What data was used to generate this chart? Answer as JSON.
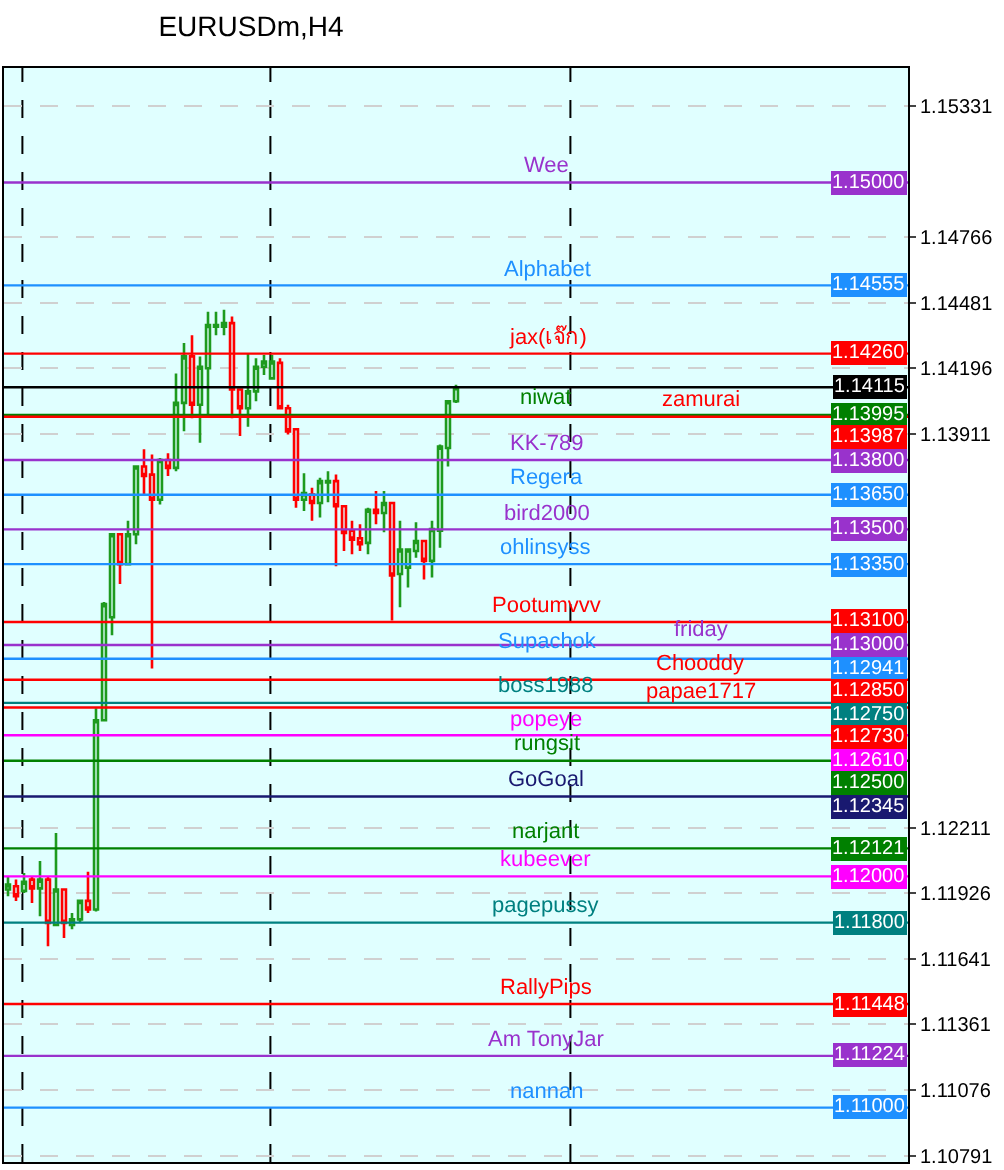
{
  "chart_data": {
    "type": "candlestick",
    "title": "EURUSDm,H4",
    "categories": [
      null,
      null,
      null,
      null,
      null,
      null,
      null,
      null,
      null,
      null,
      null,
      null,
      null,
      null,
      null,
      null,
      null,
      null,
      null,
      null,
      null,
      null,
      null,
      null,
      null,
      null,
      null,
      null,
      null,
      null,
      null,
      null,
      null,
      null,
      null,
      null,
      null,
      null,
      null,
      null,
      null,
      null,
      null,
      null,
      null,
      null,
      null,
      null,
      null,
      null,
      null,
      null,
      null,
      null,
      null,
      null,
      null,
      null,
      null,
      null,
      null,
      null,
      null,
      null,
      null,
      null,
      null,
      null,
      null,
      null,
      null,
      null,
      null,
      null,
      null,
      null,
      null,
      null,
      null,
      null,
      null,
      null,
      null,
      null,
      null,
      null,
      null,
      null,
      null,
      null,
      null,
      null,
      null,
      null,
      null,
      null,
      null,
      null,
      null,
      null,
      null,
      null,
      null,
      null,
      null,
      null,
      null,
      null,
      null,
      null,
      null,
      null,
      null
    ],
    "ohlc": [
      [
        1.11943,
        1.12,
        1.11914,
        1.11965
      ],
      [
        1.11957,
        1.11986,
        1.11894,
        1.11914
      ],
      [
        1.11937,
        1.12014,
        1.11928,
        1.11977
      ],
      [
        1.11986,
        1.12,
        1.11885,
        1.11948
      ],
      [
        1.11948,
        1.12066,
        1.11828,
        1.11986
      ],
      [
        1.11986,
        1.12,
        1.11698,
        1.11799
      ],
      [
        1.1179,
        1.12187,
        1.1179,
        1.11943
      ],
      [
        1.11943,
        1.11943,
        1.11733,
        1.11799
      ],
      [
        1.1179,
        1.11842,
        1.11771,
        1.11814
      ],
      [
        1.11814,
        1.11894,
        1.11799,
        1.11894
      ],
      [
        1.11894,
        1.1202,
        1.11842,
        1.11857
      ],
      [
        1.11857,
        1.12727,
        1.11848,
        1.12675
      ],
      [
        1.12675,
        1.13186,
        1.12675,
        1.13177
      ],
      [
        1.1312,
        1.13479,
        1.13042,
        1.13479
      ],
      [
        1.13479,
        1.13479,
        1.13264,
        1.1335
      ],
      [
        1.1335,
        1.13537,
        1.1335,
        1.13479
      ],
      [
        1.13479,
        1.13772,
        1.13436,
        1.13772
      ],
      [
        1.13772,
        1.13847,
        1.13651,
        1.13731
      ],
      [
        1.13737,
        1.13824,
        1.12899,
        1.13628
      ],
      [
        1.13628,
        1.13809,
        1.13608,
        1.138
      ],
      [
        1.138,
        1.13829,
        1.13731,
        1.13766
      ],
      [
        1.13766,
        1.14174,
        1.13752,
        1.14047
      ],
      [
        1.14047,
        1.14306,
        1.13924,
        1.14248
      ],
      [
        1.14248,
        1.1434,
        1.13981,
        1.14039
      ],
      [
        1.14039,
        1.14248,
        1.13875,
        1.14203
      ],
      [
        1.14197,
        1.14441,
        1.13996,
        1.14384
      ],
      [
        1.14377,
        1.14441,
        1.1434,
        1.14384
      ],
      [
        1.14377,
        1.1445,
        1.1434,
        1.14392
      ],
      [
        1.14392,
        1.14421,
        1.13981,
        1.14105
      ],
      [
        1.14105,
        1.14105,
        1.13904,
        1.14024
      ],
      [
        1.14024,
        1.1426,
        1.13944,
        1.14097
      ],
      [
        1.14097,
        1.1424,
        1.14054,
        1.14203
      ],
      [
        1.14203,
        1.14254,
        1.14168,
        1.14226
      ],
      [
        1.14153,
        1.14254,
        1.14153,
        1.14226
      ],
      [
        1.1422,
        1.1424,
        1.14024,
        1.14024
      ],
      [
        1.14024,
        1.14039,
        1.1391,
        1.13924
      ],
      [
        1.13933,
        1.13933,
        1.13594,
        1.13628
      ],
      [
        1.13628,
        1.13743,
        1.1358,
        1.13657
      ],
      [
        1.13651,
        1.1368,
        1.13537,
        1.13614
      ],
      [
        1.13614,
        1.13723,
        1.13551,
        1.13709
      ],
      [
        1.13703,
        1.13752,
        1.13617,
        1.13709
      ],
      [
        1.13709,
        1.13737,
        1.13341,
        1.136
      ],
      [
        1.136,
        1.136,
        1.13407,
        1.13485
      ],
      [
        1.13494,
        1.13537,
        1.13393,
        1.13456
      ],
      [
        1.13462,
        1.13522,
        1.13407,
        1.13436
      ],
      [
        1.13442,
        1.13594,
        1.13393,
        1.13585
      ],
      [
        1.13585,
        1.13666,
        1.13522,
        1.13571
      ],
      [
        1.13571,
        1.13666,
        1.13488,
        1.13614
      ],
      [
        1.13614,
        1.13614,
        1.13106,
        1.13301
      ],
      [
        1.13307,
        1.13537,
        1.13163,
        1.13413
      ],
      [
        1.13335,
        1.13413,
        1.13249,
        1.13413
      ],
      [
        1.13407,
        1.13531,
        1.13378,
        1.1345
      ],
      [
        1.1345,
        1.1345,
        1.13283,
        1.13364
      ],
      [
        1.13364,
        1.13537,
        1.13292,
        1.13502
      ],
      [
        1.13494,
        1.13867,
        1.13421,
        1.13858
      ],
      [
        1.13852,
        1.14059,
        1.13772,
        1.14054
      ],
      [
        1.14054,
        1.14125,
        1.14047,
        1.14115
      ],
      null,
      null,
      null,
      null,
      null,
      null,
      null,
      null,
      null,
      null,
      null,
      null,
      null,
      null,
      null,
      null,
      null,
      null,
      null,
      null,
      null,
      null,
      null,
      null,
      null,
      null,
      null,
      null,
      null,
      null,
      null,
      null,
      null,
      null,
      null,
      null,
      null,
      null,
      null,
      null,
      null,
      null,
      null,
      null,
      null,
      null,
      null,
      null,
      null,
      null,
      null,
      null,
      null,
      null,
      null,
      null
    ],
    "colors": [
      "#1e9a1e",
      "#ff0000",
      "#1e9a1e",
      "#ff0000",
      "#1e9a1e",
      "#ff0000",
      "#1e9a1e",
      "#ff0000",
      "#1e9a1e",
      "#1e9a1e",
      "#ff0000",
      "#1e9a1e",
      "#1e9a1e",
      "#1e9a1e",
      "#ff0000",
      "#1e9a1e",
      "#1e9a1e",
      "#ff0000",
      "#ff0000",
      "#1e9a1e",
      "#ff0000",
      "#1e9a1e",
      "#1e9a1e",
      "#ff0000",
      "#1e9a1e",
      "#1e9a1e",
      "#1e9a1e",
      "#1e9a1e",
      "#ff0000",
      "#ff0000",
      "#1e9a1e",
      "#1e9a1e",
      "#1e9a1e",
      "#1e9a1e",
      "#ff0000",
      "#ff0000",
      "#ff0000",
      "#1e9a1e",
      "#ff0000",
      "#1e9a1e",
      "#1e9a1e",
      "#ff0000",
      "#ff0000",
      "#ff0000",
      "#ff0000",
      "#1e9a1e",
      "#ff0000",
      "#1e9a1e",
      "#ff0000",
      "#1e9a1e",
      "#1e9a1e",
      "#1e9a1e",
      "#ff0000",
      "#1e9a1e",
      "#1e9a1e",
      "#1e9a1e",
      "#1e9a1e",
      null,
      null,
      null,
      null,
      null,
      null,
      null,
      null,
      null,
      null,
      null,
      null,
      null,
      null,
      null,
      null,
      null,
      null,
      null,
      null,
      null,
      null,
      null,
      null,
      null,
      null,
      null,
      null,
      null,
      null,
      null,
      null,
      null,
      null,
      null,
      null,
      null,
      null,
      null,
      null,
      null,
      null,
      null,
      null,
      null,
      null,
      null,
      null,
      null,
      null,
      null,
      null,
      null,
      null,
      null,
      null
    ],
    "ylim": [
      1.10765,
      1.15495
    ],
    "yticks": [
      1.15331,
      1.14766,
      1.14481,
      1.14196,
      1.13911,
      1.12211,
      1.11926,
      1.11641,
      1.11361,
      1.11076,
      1.10791
    ],
    "grid": "y",
    "annotations": [
      {
        "text": "1.15000",
        "y": 1.15
      },
      {
        "text": "1.14555",
        "y": 1.14555
      },
      {
        "text": "1.14260",
        "y": 1.1426
      },
      {
        "text": "1.14115",
        "y": 1.14115
      },
      {
        "text": "1.13995",
        "y": 1.13995
      },
      {
        "text": "1.13987",
        "y": 1.13987
      },
      {
        "text": "1.13800",
        "y": 1.138
      },
      {
        "text": "1.13650",
        "y": 1.1365
      },
      {
        "text": "1.13500",
        "y": 1.135
      },
      {
        "text": "1.13350",
        "y": 1.1335
      },
      {
        "text": "1.13100",
        "y": 1.131
      },
      {
        "text": "1.13000",
        "y": 1.13
      },
      {
        "text": "1.12941",
        "y": 1.12941
      },
      {
        "text": "1.12850",
        "y": 1.1285
      },
      {
        "text": "1.12750",
        "y": 1.1275
      },
      {
        "text": "1.12730",
        "y": 1.1273
      },
      {
        "text": "1.12610",
        "y": 1.1261
      },
      {
        "text": "1.12500",
        "y": 1.125
      },
      {
        "text": "1.12345",
        "y": 1.12345
      },
      {
        "text": "1.12121",
        "y": 1.12121
      },
      {
        "text": "1.12000",
        "y": 1.12
      },
      {
        "text": "1.11800",
        "y": 1.118
      },
      {
        "text": "1.11448",
        "y": 1.11448
      },
      {
        "text": "1.11224",
        "y": 1.11224
      },
      {
        "text": "1.11000",
        "y": 1.11
      }
    ],
    "ref_lines": [
      {
        "axis": "y",
        "value": 1.15,
        "label": "Wee",
        "color": "#9932cc"
      },
      {
        "axis": "y",
        "value": 1.14555,
        "label": "Alphabet",
        "color": "#1e90ff"
      },
      {
        "axis": "y",
        "value": 1.1426,
        "label": "jax(เจ๊ก)",
        "color": "#ff0000"
      },
      {
        "axis": "y",
        "value": 1.14115,
        "label": null,
        "color": "#000000"
      },
      {
        "axis": "y",
        "value": 1.13995,
        "label": "niwat",
        "color": "#008000"
      },
      {
        "axis": "y",
        "value": 1.13987,
        "label": "zamurai",
        "color": "#ff0000"
      },
      {
        "axis": "y",
        "value": 1.138,
        "label": "KK-789",
        "color": "#9932cc"
      },
      {
        "axis": "y",
        "value": 1.1365,
        "label": "Regera",
        "color": "#1e90ff"
      },
      {
        "axis": "y",
        "value": 1.135,
        "label": "bird2000",
        "color": "#9932cc"
      },
      {
        "axis": "y",
        "value": 1.1335,
        "label": "ohlinsyss",
        "color": "#1e90ff"
      },
      {
        "axis": "y",
        "value": 1.131,
        "label": "Pootumvvv",
        "color": "#ff0000"
      },
      {
        "axis": "y",
        "value": 1.13,
        "label": "friday",
        "color": "#9932cc"
      },
      {
        "axis": "y",
        "value": 1.12941,
        "label": "Supachok",
        "color": "#1e90ff"
      },
      {
        "axis": "y",
        "value": 1.1285,
        "label": "Chooddy",
        "color": "#ff0000"
      },
      {
        "axis": "y",
        "value": 1.1275,
        "label": "boss1988",
        "color": "#008080"
      },
      {
        "axis": "y",
        "value": 1.1273,
        "label": "papae1717",
        "color": "#ff0000"
      },
      {
        "axis": "y",
        "value": 1.1261,
        "label": "popeye",
        "color": "#ff00ff"
      },
      {
        "axis": "y",
        "value": 1.125,
        "label": "rungsit",
        "color": "#008000"
      },
      {
        "axis": "y",
        "value": 1.12345,
        "label": "GoGoal",
        "color": "#191970"
      },
      {
        "axis": "y",
        "value": 1.12121,
        "label": "narjant",
        "color": "#008000"
      },
      {
        "axis": "y",
        "value": 1.12,
        "label": "kubeever",
        "color": "#ff00ff"
      },
      {
        "axis": "y",
        "value": 1.118,
        "label": "pagepussy",
        "color": "#008080"
      },
      {
        "axis": "y",
        "value": 1.11448,
        "label": "RallyPips",
        "color": "#ff0000"
      },
      {
        "axis": "y",
        "value": 1.11224,
        "label": "Am TonyJar",
        "color": "#9932cc"
      },
      {
        "axis": "y",
        "value": 1.11,
        "label": "nannan",
        "color": "#1e90ff"
      }
    ]
  }
}
